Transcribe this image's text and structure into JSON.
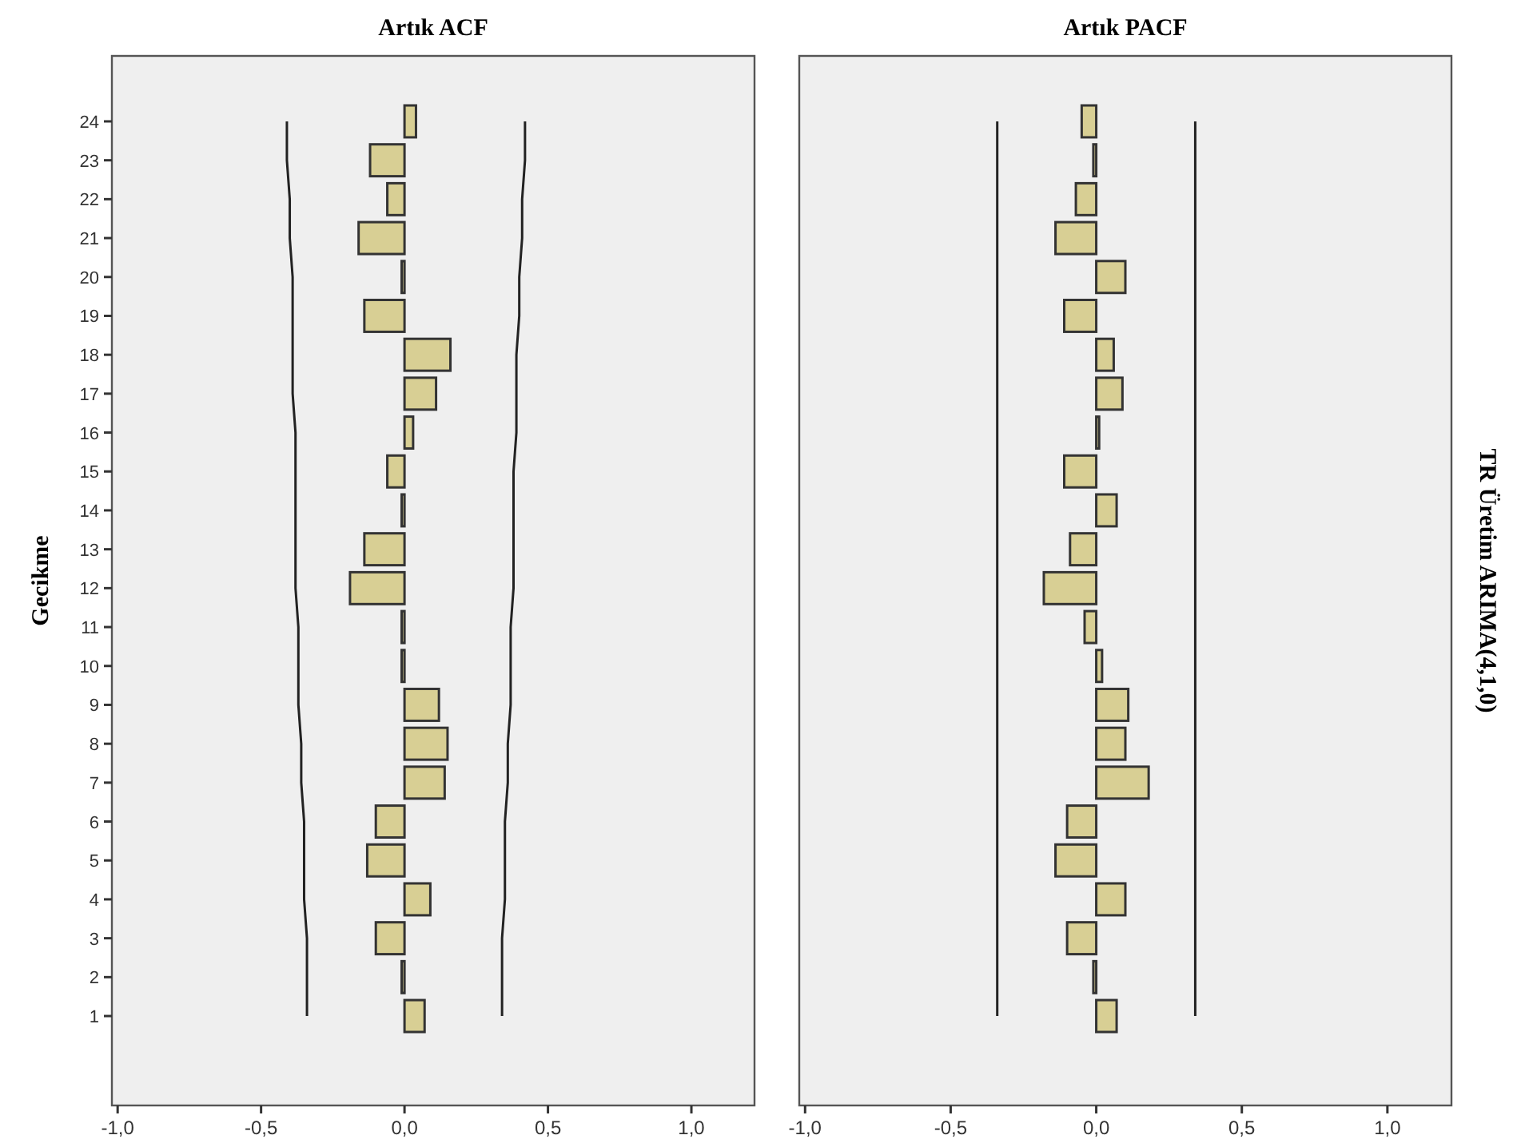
{
  "chart_data": [
    {
      "type": "bar",
      "orientation": "horizontal",
      "title": "Artık ACF",
      "ylabel": "Gecikme",
      "categories": [
        "24",
        "23",
        "22",
        "21",
        "20",
        "19",
        "18",
        "17",
        "16",
        "15",
        "14",
        "13",
        "12",
        "11",
        "10",
        "9",
        "8",
        "7",
        "6",
        "5",
        "4",
        "3",
        "2",
        "1"
      ],
      "xlim": [
        -1.02,
        1.22
      ],
      "xticks": [
        {
          "value": -1,
          "label": "-1,0"
        },
        {
          "value": -0.5,
          "label": "-0,5"
        },
        {
          "value": 0,
          "label": "0,0"
        },
        {
          "value": 0.5,
          "label": "0,5"
        },
        {
          "value": 1,
          "label": "1,0"
        }
      ],
      "series": [
        {
          "color": "#d8cf94",
          "values": [
            0.04,
            -0.12,
            -0.06,
            -0.16,
            -0.01,
            -0.14,
            0.16,
            0.11,
            0.03,
            -0.06,
            -0.01,
            -0.14,
            -0.19,
            -0.01,
            -0.01,
            0.12,
            0.15,
            0.14,
            -0.1,
            -0.13,
            0.09,
            -0.1,
            -0.01,
            0.07
          ]
        },
        {
          "type": "line",
          "color": "#222222",
          "values": [
            0.42,
            0.42,
            0.41,
            0.41,
            0.4,
            0.4,
            0.39,
            0.39,
            0.39,
            0.38,
            0.38,
            0.38,
            0.38,
            0.37,
            0.37,
            0.37,
            0.36,
            0.36,
            0.35,
            0.35,
            0.35,
            0.34,
            0.34,
            0.34
          ]
        },
        {
          "type": "line",
          "color": "#222222",
          "values": [
            -0.41,
            -0.41,
            -0.4,
            -0.4,
            -0.39,
            -0.39,
            -0.39,
            -0.39,
            -0.38,
            -0.38,
            -0.38,
            -0.38,
            -0.38,
            -0.37,
            -0.37,
            -0.37,
            -0.36,
            -0.36,
            -0.35,
            -0.35,
            -0.35,
            -0.34,
            -0.34,
            -0.34
          ]
        }
      ]
    },
    {
      "type": "bar",
      "orientation": "horizontal",
      "title": "Artık PACF",
      "y2label": "TR Üretim ARIMA(4,1,0)",
      "tick_labels": "x",
      "categories": [
        null,
        null,
        null,
        null,
        null,
        null,
        null,
        null,
        null,
        null,
        null,
        null,
        null,
        null,
        null,
        null,
        null,
        null,
        null,
        null,
        null,
        null,
        null,
        null
      ],
      "xlim": [
        -1.02,
        1.22
      ],
      "xticks": [
        {
          "value": -1,
          "label": "-1,0"
        },
        {
          "value": -0.5,
          "label": "-0,5"
        },
        {
          "value": 0,
          "label": "0,0"
        },
        {
          "value": 0.5,
          "label": "0,5"
        },
        {
          "value": 1,
          "label": "1,0"
        }
      ],
      "series": [
        {
          "color": "#d8cf94",
          "values": [
            -0.05,
            -0.01,
            -0.07,
            -0.14,
            0.1,
            -0.11,
            0.06,
            0.09,
            0.01,
            -0.11,
            0.07,
            -0.09,
            -0.18,
            -0.04,
            0.02,
            0.11,
            0.1,
            0.18,
            -0.1,
            -0.14,
            0.1,
            -0.1,
            -0.01,
            0.07
          ]
        },
        {
          "type": "line",
          "color": "#222222",
          "values": [
            0.34,
            0.34,
            0.34,
            0.34,
            0.34,
            0.34,
            0.34,
            0.34,
            0.34,
            0.34,
            0.34,
            0.34,
            0.34,
            0.34,
            0.34,
            0.34,
            0.34,
            0.34,
            0.34,
            0.34,
            0.34,
            0.34,
            0.34,
            0.34
          ]
        },
        {
          "type": "line",
          "color": "#222222",
          "values": [
            -0.34,
            -0.34,
            -0.34,
            -0.34,
            -0.34,
            -0.34,
            -0.34,
            -0.34,
            -0.34,
            -0.34,
            -0.34,
            -0.34,
            -0.34,
            -0.34,
            -0.34,
            -0.34,
            -0.34,
            -0.34,
            -0.34,
            -0.34,
            -0.34,
            -0.34,
            -0.34,
            -0.34
          ]
        }
      ]
    }
  ]
}
